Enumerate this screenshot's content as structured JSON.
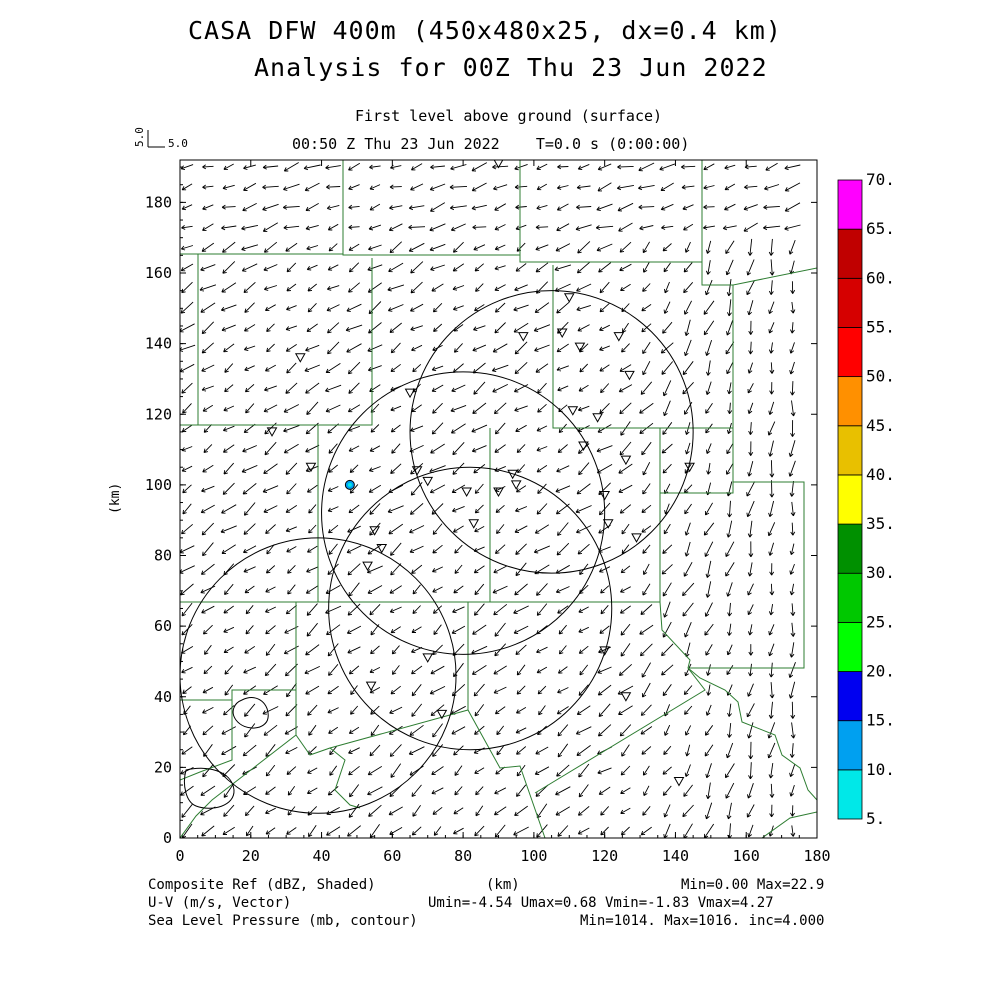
{
  "title": {
    "line1": "CASA DFW 400m (450x480x25, dx=0.4 km)",
    "line2": "Analysis for 00Z Thu 23 Jun 2022"
  },
  "subtitle": {
    "level": "First level above ground (surface)",
    "time": "00:50 Z Thu 23 Jun 2022    T=0.0 s (0:00:00)"
  },
  "reference_vector": {
    "vertical_label": "5.0",
    "horizontal_label": "5.0"
  },
  "axes": {
    "x_label": "(km)",
    "y_label": "(km)",
    "x_ticks": [
      "0",
      "20",
      "40",
      "60",
      "80",
      "100",
      "120",
      "140",
      "160",
      "180"
    ],
    "y_ticks": [
      "0",
      "20",
      "40",
      "60",
      "80",
      "100",
      "120",
      "140",
      "160",
      "180"
    ],
    "x_range": [
      0,
      180
    ],
    "y_range": [
      0,
      192
    ]
  },
  "colorbar": {
    "levels": [
      "5.",
      "10.",
      "15.",
      "20.",
      "25.",
      "30.",
      "35.",
      "40.",
      "45.",
      "50.",
      "55.",
      "60.",
      "65.",
      "70."
    ],
    "colors": [
      "#00e8e8",
      "#00a0f0",
      "#0000f0",
      "#00ff00",
      "#00c800",
      "#009000",
      "#ffff00",
      "#e8c000",
      "#ff9000",
      "#ff0000",
      "#d60000",
      "#c00000",
      "#ff00ff"
    ]
  },
  "footer": {
    "left1": "Composite Ref (dBZ, Shaded)",
    "left2": "U-V (m/s, Vector)",
    "left3": "Sea Level Pressure (mb, contour)",
    "center1": "(km)",
    "right1": "Min=0.00 Max=22.9",
    "right2": "Umin=-4.54 Umax=0.68 Vmin=-1.83 Vmax=4.27",
    "right3": "Min=1014. Max=1016. inc=4.000"
  },
  "map_colors": {
    "county_lines": "#2e7d32",
    "radar_rings": "#000000",
    "echo": "#00a0f0"
  },
  "radar_rings_km": [
    {
      "cx": 39,
      "cy": 46,
      "r": 39
    },
    {
      "cx": 80,
      "cy": 92,
      "r": 40
    },
    {
      "cx": 105,
      "cy": 115,
      "r": 40
    },
    {
      "cx": 82,
      "cy": 65,
      "r": 40
    }
  ],
  "stations_km": [
    [
      90,
      191
    ],
    [
      110,
      153
    ],
    [
      97,
      142
    ],
    [
      108,
      143
    ],
    [
      113,
      139
    ],
    [
      124,
      142
    ],
    [
      127,
      131
    ],
    [
      34,
      136
    ],
    [
      65,
      126
    ],
    [
      111,
      121
    ],
    [
      118,
      119
    ],
    [
      26,
      115
    ],
    [
      37,
      105
    ],
    [
      67,
      104
    ],
    [
      70,
      101
    ],
    [
      81,
      98
    ],
    [
      90,
      98
    ],
    [
      94,
      103
    ],
    [
      95,
      100
    ],
    [
      114,
      111
    ],
    [
      126,
      107
    ],
    [
      144,
      105
    ],
    [
      120,
      97
    ],
    [
      55,
      87
    ],
    [
      83,
      89
    ],
    [
      121,
      89
    ],
    [
      129,
      85
    ],
    [
      57,
      82
    ],
    [
      53,
      77
    ],
    [
      70,
      51
    ],
    [
      120,
      53
    ],
    [
      54,
      43
    ],
    [
      126,
      40
    ],
    [
      74,
      35
    ],
    [
      141,
      16
    ]
  ],
  "echo_km": {
    "x": 48,
    "y": 100
  }
}
